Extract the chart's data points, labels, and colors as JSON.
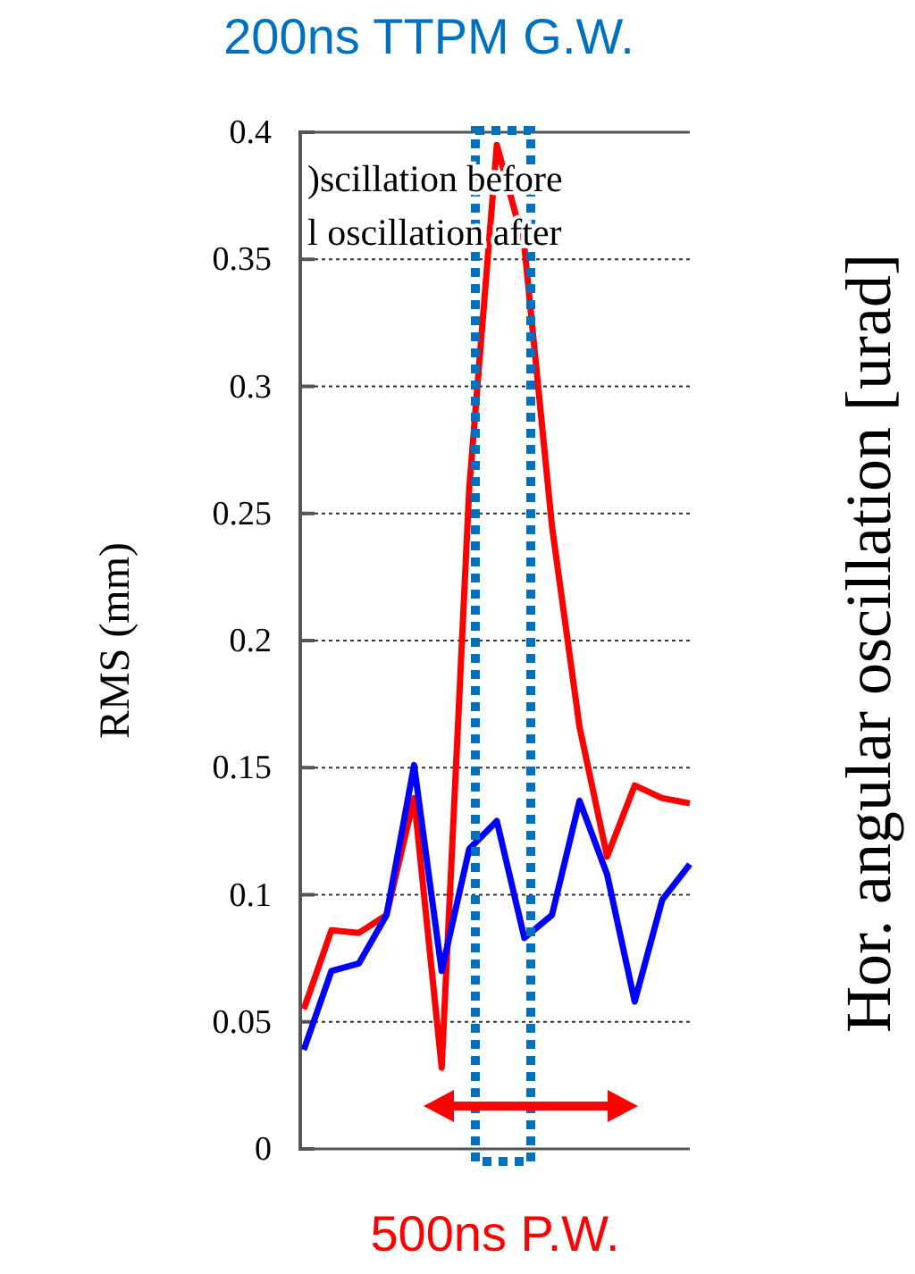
{
  "chart_data": {
    "type": "line",
    "title": "200ns TTPM G.W.",
    "ylabel": "RMS (mm)",
    "y2label": "Hor. angular oscillation [urad]",
    "categories": [
      null,
      null,
      null,
      null,
      null,
      null,
      null,
      null,
      null,
      null,
      null,
      null,
      null,
      null,
      null
    ],
    "series": [
      {
        "color": "#ff0000",
        "values": [
          0.055,
          0.086,
          0.085,
          0.092,
          0.138,
          0.032,
          0.26,
          0.395,
          0.355,
          0.245,
          0.166,
          0.115,
          0.143,
          0.138,
          0.136
        ]
      },
      {
        "color": "#0000ff",
        "values": [
          0.039,
          0.07,
          0.073,
          0.092,
          0.151,
          0.07,
          0.118,
          0.129,
          0.083,
          0.092,
          0.137,
          0.108,
          0.058,
          0.098,
          0.112
        ]
      }
    ],
    "ylim": [
      0,
      0.4
    ],
    "yticks": [
      0,
      0.05,
      0.1,
      0.15,
      0.2,
      0.25,
      0.3,
      0.35,
      0.4
    ],
    "grid": "y",
    "marker": "none",
    "line_style": "solid",
    "annotations": [
      ")scillation before",
      "l oscillation after",
      "500ns P.W."
    ]
  }
}
